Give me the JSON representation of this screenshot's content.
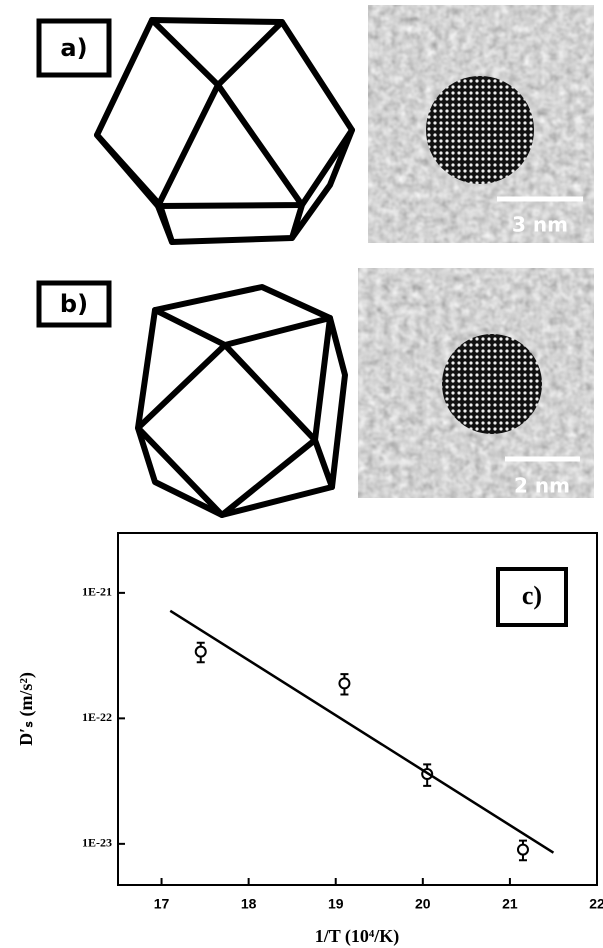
{
  "panels": [
    {
      "label": "a)",
      "scale_bar": "3 nm"
    },
    {
      "label": "b)",
      "scale_bar": "2 nm"
    }
  ],
  "chart_data": {
    "type": "scatter",
    "annotation": "c)",
    "x_label": "1/T (10⁴/K)",
    "y_label": "D′ₛ (m/s²)",
    "x": [
      17.45,
      19.1,
      20.05,
      21.15
    ],
    "values": [
      3.4e-22,
      1.9e-22,
      3.6e-23,
      9e-24
    ],
    "errors": [
      6e-23,
      3.5e-23,
      7e-24,
      1.6e-24
    ],
    "marker_color": "#000000",
    "fit": {
      "x": [
        17.1,
        21.5
      ],
      "values": [
        7.2e-22,
        8.5e-24
      ],
      "color": "#000000"
    },
    "xlim": [
      16.5,
      22
    ],
    "xticks": [
      17,
      18,
      19,
      20,
      21,
      22
    ],
    "ylim": [
      4.7e-24,
      3e-21
    ],
    "ylog": true,
    "yticks": [
      {
        "value": 1e-21,
        "label": "1E-21"
      },
      {
        "value": 1e-22,
        "label": "1E-22"
      },
      {
        "value": 1e-23,
        "label": "1E-23"
      }
    ],
    "grid": false
  }
}
